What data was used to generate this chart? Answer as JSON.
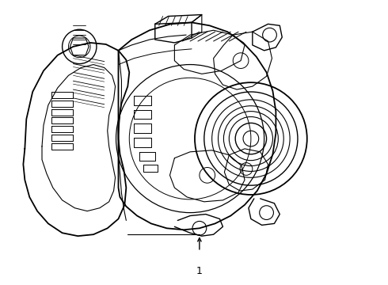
{
  "background_color": "#ffffff",
  "line_color": "#000000",
  "label_number": "1",
  "fig_width": 4.9,
  "fig_height": 3.6,
  "dpi": 100
}
